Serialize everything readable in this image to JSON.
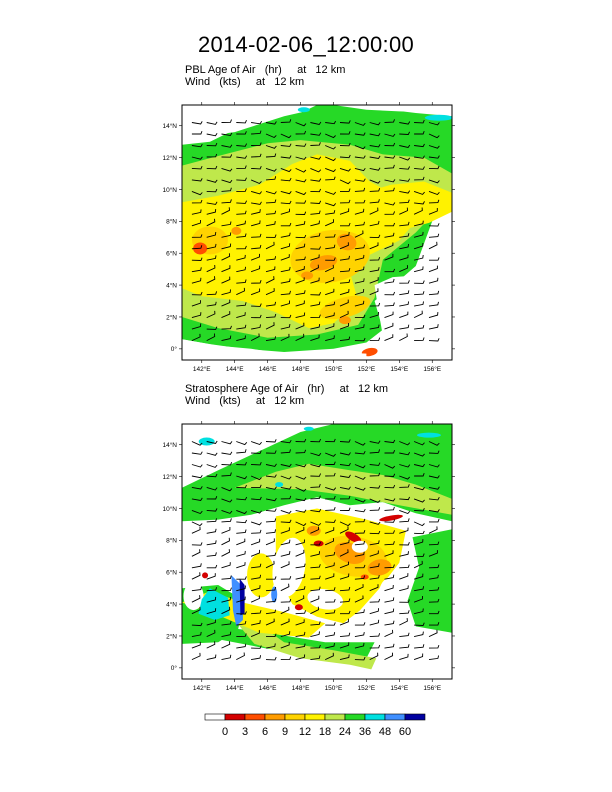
{
  "title": "2014-02-06_12:00:00",
  "panels": [
    {
      "id": "pbl",
      "title_line1": "PBL Age of Air   (hr)     at   12 km",
      "title_line2": "Wind   (kts)     at   12 km"
    },
    {
      "id": "strat",
      "title_line1": "Stratosphere Age of Air   (hr)     at   12 km",
      "title_line2": "Wind   (kts)     at   12 km"
    }
  ],
  "chart_data": {
    "type": "heatmap",
    "title": "2014-02-06_12:00:00",
    "x_ticks": [
      "142°E",
      "144°E",
      "146°E",
      "148°E",
      "150°E",
      "152°E",
      "154°E",
      "156°E"
    ],
    "x_tick_values": [
      142,
      144,
      146,
      148,
      150,
      152,
      154,
      156
    ],
    "y_ticks": [
      "0°",
      "2°N",
      "4°N",
      "6°N",
      "8°N",
      "10°N",
      "12°N",
      "14°N"
    ],
    "y_tick_values": [
      0,
      2,
      4,
      6,
      8,
      10,
      12,
      14
    ],
    "xlim": [
      140.8,
      157.2
    ],
    "ylim": [
      -0.7,
      15.3
    ],
    "colorbar": {
      "levels": [
        "0",
        "3",
        "6",
        "9",
        "12",
        "18",
        "24",
        "36",
        "48",
        "60"
      ],
      "colors": [
        "#ffffff",
        "#d40000",
        "#ff4e00",
        "#ff9c00",
        "#ffd300",
        "#fff200",
        "#bfe84b",
        "#26d926",
        "#00e0e0",
        "#3f8fff",
        "#0000a0"
      ]
    },
    "panels": [
      {
        "name": "PBL Age of Air",
        "variable": "PBL Age of Air",
        "units": "hr",
        "level": "12 km",
        "overlay": "Wind (kts) at 12 km"
      },
      {
        "name": "Stratosphere Age of Air",
        "variable": "Stratosphere Age of Air",
        "units": "hr",
        "level": "12 km",
        "overlay": "Wind (kts) at 12 km"
      }
    ]
  }
}
